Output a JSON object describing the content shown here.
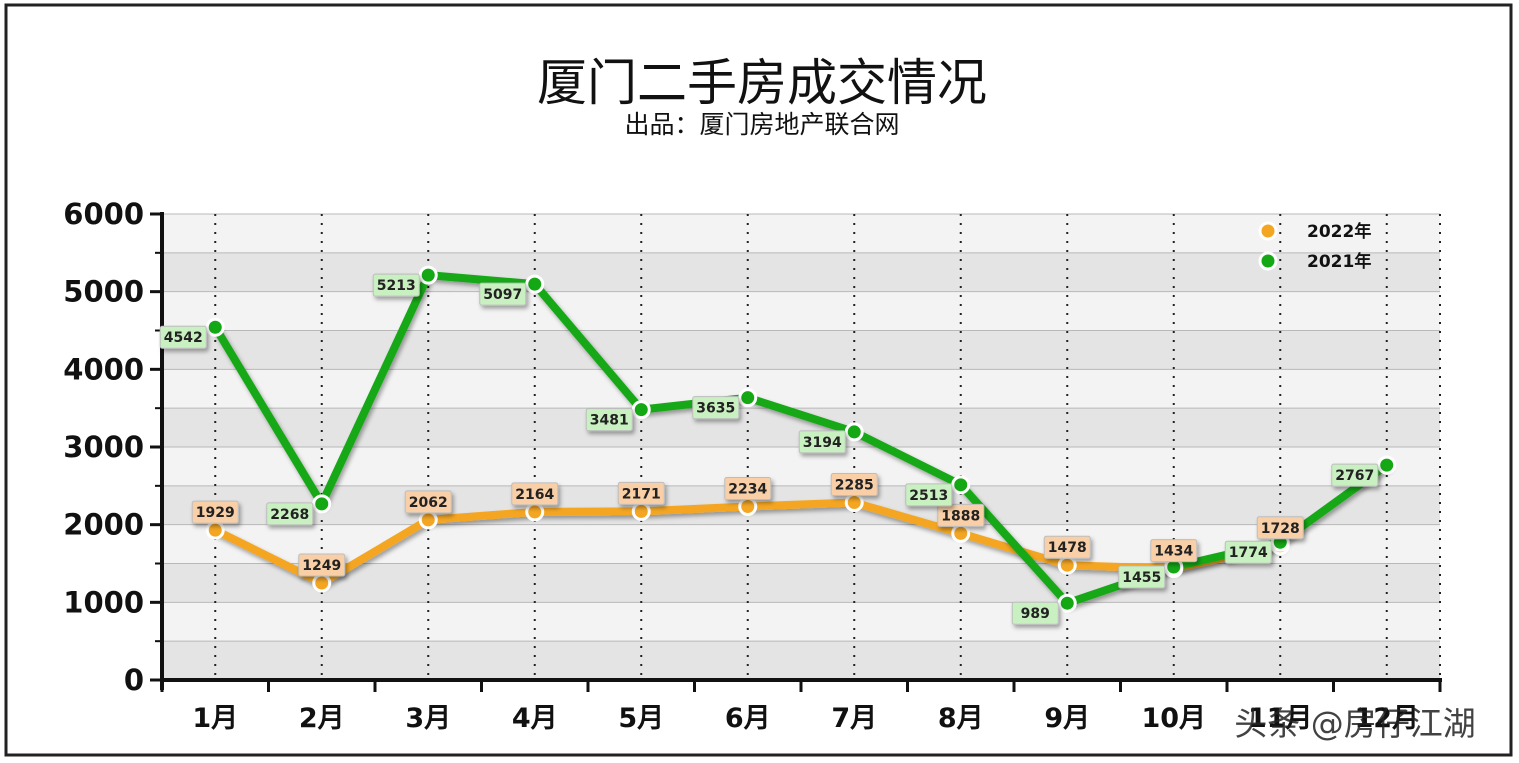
{
  "chart_data": {
    "type": "line",
    "title": "厦门二手房成交情况",
    "subtitle": "出品：厦门房地产联合网",
    "categories": [
      "1月",
      "2月",
      "3月",
      "4月",
      "5月",
      "6月",
      "7月",
      "8月",
      "9月",
      "10月",
      "11月",
      "12月"
    ],
    "ylim": [
      0,
      6000
    ],
    "yticks": [
      0,
      1000,
      2000,
      3000,
      4000,
      5000,
      6000
    ],
    "grid": true,
    "legend_position": "top-right",
    "series": [
      {
        "name": "2022年",
        "color": "#f4a623",
        "label_bg": "#f8cfa6",
        "values": [
          1929,
          1249,
          2062,
          2164,
          2171,
          2234,
          2285,
          1888,
          1478,
          1434,
          1728,
          null
        ]
      },
      {
        "name": "2021年",
        "color": "#14a814",
        "label_bg": "#c9f0c0",
        "values": [
          4542,
          2268,
          5213,
          5097,
          3481,
          3635,
          3194,
          2513,
          989,
          1455,
          1774,
          2767
        ]
      }
    ]
  },
  "watermark": "头条 @房仔江湖"
}
